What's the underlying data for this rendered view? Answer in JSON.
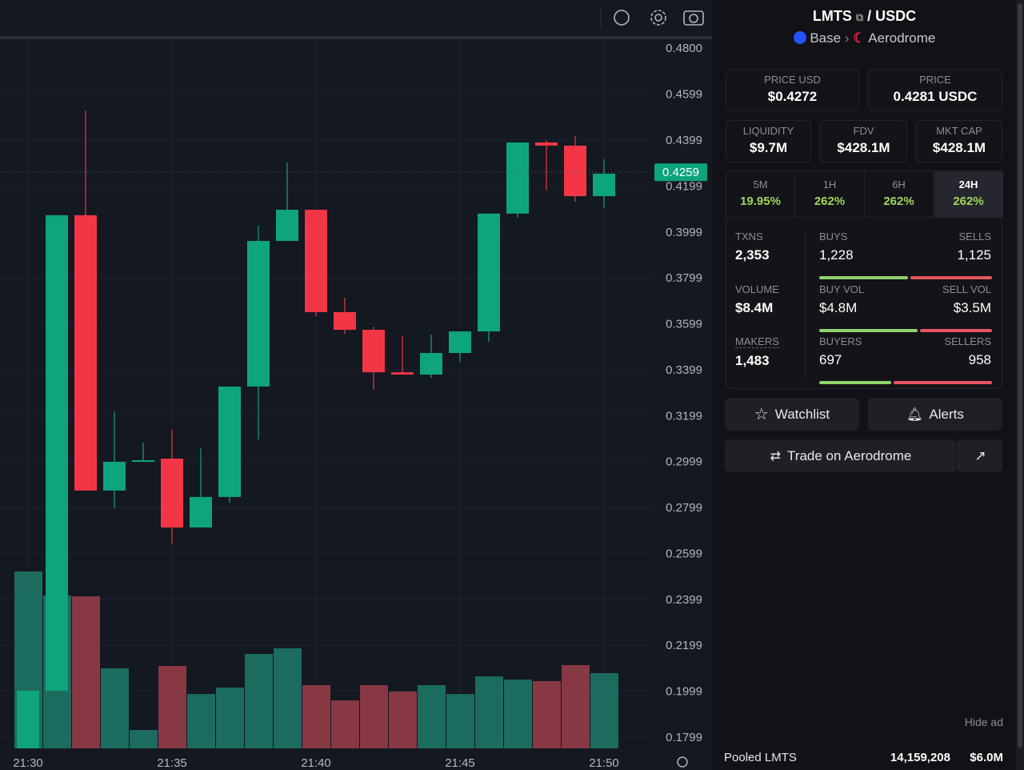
{
  "chart_data": {
    "type": "candlestick",
    "categories": [
      "21:30",
      null,
      null,
      null,
      null,
      "21:35",
      null,
      null,
      null,
      null,
      "21:40",
      null,
      null,
      null,
      null,
      "21:45",
      null,
      null,
      null,
      null,
      "21:50"
    ],
    "open": [
      0.17,
      0.2001,
      0.4072,
      0.2873,
      0.2998,
      0.3012,
      0.2712,
      0.2845,
      0.3326,
      0.396,
      0.4096,
      0.365,
      0.3573,
      0.3388,
      0.3378,
      0.3472,
      0.3566,
      0.4079,
      0.4389,
      0.4375,
      0.4155
    ],
    "high": [
      0.2001,
      0.4072,
      0.4528,
      0.3218,
      0.3082,
      0.3137,
      0.3057,
      0.3326,
      0.4026,
      0.4302,
      0.4096,
      0.3713,
      0.3587,
      0.3545,
      0.3552,
      0.3566,
      0.4079,
      0.4389,
      0.4399,
      0.4417,
      0.4316
    ],
    "low": [
      0.17,
      0.2001,
      0.2873,
      0.2796,
      0.2998,
      0.2643,
      0.2712,
      0.282,
      0.3096,
      0.396,
      0.3632,
      0.3556,
      0.3312,
      0.3378,
      0.3364,
      0.3434,
      0.3521,
      0.4061,
      0.418,
      0.4131,
      0.4103
    ],
    "close": [
      0.2001,
      0.4072,
      0.2873,
      0.2998,
      0.3005,
      0.2712,
      0.2845,
      0.3326,
      0.396,
      0.4096,
      0.365,
      0.3573,
      0.3388,
      0.3378,
      0.3472,
      0.3566,
      0.4079,
      0.4389,
      0.4375,
      0.4155,
      0.4253
    ],
    "volume": [
      221,
      191,
      190,
      100,
      23,
      103,
      68,
      76,
      118,
      125,
      79,
      60,
      79,
      71,
      79,
      68,
      90,
      86,
      84,
      104,
      94
    ],
    "volume_lim": [
      0,
      230
    ],
    "up_color": "#0ea47c",
    "down_color": "#f23645",
    "volume_up_color": "#1c6b5f",
    "volume_down_color": "#873843",
    "ylim": [
      0.175,
      0.4835
    ],
    "yticks": [
      {
        "value": 0.48,
        "label": "0.4800"
      },
      0.4599,
      0.4399,
      0.4199,
      0.3999,
      0.3799,
      0.3599,
      0.3399,
      0.3199,
      0.2999,
      0.2799,
      0.2599,
      0.2399,
      0.2199,
      0.1999,
      0.1799
    ],
    "last_price": 0.4259,
    "grid": true
  },
  "panel": {
    "base": "LMTS",
    "quote": "USDC",
    "chain": "Base",
    "dex": "Aerodrome",
    "stats": [
      {
        "label": "PRICE USD",
        "value": "$0.4272"
      },
      {
        "label": "PRICE",
        "value": "0.4281 USDC"
      },
      {
        "label": "LIQUIDITY",
        "value": "$9.7M"
      },
      {
        "label": "FDV",
        "value": "$428.1M"
      },
      {
        "label": "MKT CAP",
        "value": "$428.1M"
      }
    ],
    "changes": [
      {
        "period": "5M",
        "value": "19.95%"
      },
      {
        "period": "1H",
        "value": "262%"
      },
      {
        "period": "6H",
        "value": "262%"
      },
      {
        "period": "24H",
        "value": "262%",
        "active": true
      }
    ],
    "txns": {
      "label": "TXNS",
      "value": "2,353"
    },
    "buys": {
      "label": "BUYS",
      "count": {
        "value": 1228,
        "label": "1,228"
      }
    },
    "sells": {
      "label": "SELLS",
      "count": {
        "value": 1125,
        "label": "1,125"
      }
    },
    "volume": {
      "label": "VOLUME",
      "value": "$8.4M"
    },
    "buy_vol": {
      "label": "BUY VOL",
      "amount": {
        "value": 4800000,
        "label": "$4.8M"
      }
    },
    "sell_vol": {
      "label": "SELL VOL",
      "amount": {
        "value": 3500000,
        "label": "$3.5M"
      }
    },
    "makers": {
      "label": "MAKERS",
      "value": "1,483"
    },
    "buyers": {
      "label": "BUYERS",
      "count": 697
    },
    "sellers": {
      "label": "SELLERS",
      "count": 958
    },
    "buttons": [
      "Watchlist",
      "Alerts",
      "Trade on Aerodrome"
    ],
    "hide_ad": "Hide ad",
    "pooled": {
      "label": "Pooled LMTS",
      "amount": "14,159,208",
      "value": "$6.0M"
    }
  }
}
